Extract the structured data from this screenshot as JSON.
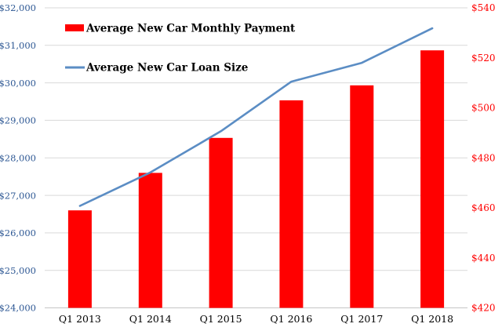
{
  "chart_data": {
    "type": "combo",
    "categories": [
      "Q1 2013",
      "Q1 2014",
      "Q1 2015",
      "Q1 2016",
      "Q1 2017",
      "Q1 2018"
    ],
    "series": [
      {
        "name": "Average New Car Monthly Payment",
        "chart_type": "bar",
        "axis": "right",
        "color": "#FF0000",
        "values": [
          459,
          474,
          488,
          503,
          509,
          523
        ]
      },
      {
        "name": "Average New Car Loan Size",
        "chart_type": "line",
        "axis": "left",
        "color": "#5B8DC4",
        "values": [
          26719,
          27612,
          28711,
          30032,
          30534,
          31455
        ]
      }
    ],
    "left_axis": {
      "min": 24000,
      "max": 32000,
      "step": 1000,
      "tick_labels": [
        "$32,000",
        "$31,000",
        "$30,000",
        "$29,000",
        "$28,000",
        "$27,000",
        "$26,000",
        "$25,000",
        "$24,000"
      ],
      "color": "#2E5894"
    },
    "right_axis": {
      "min": 420,
      "max": 540,
      "step": 20,
      "tick_labels": [
        "$540",
        "$520",
        "$500",
        "$480",
        "$460",
        "$440",
        "$420"
      ],
      "color": "#FF0000"
    },
    "x_axis": {
      "labels_color": "#000000"
    },
    "grid": true,
    "gridline_color": "#D9D9D9",
    "axisline_color": "#C6C6C6",
    "legend_position": "top-left"
  }
}
